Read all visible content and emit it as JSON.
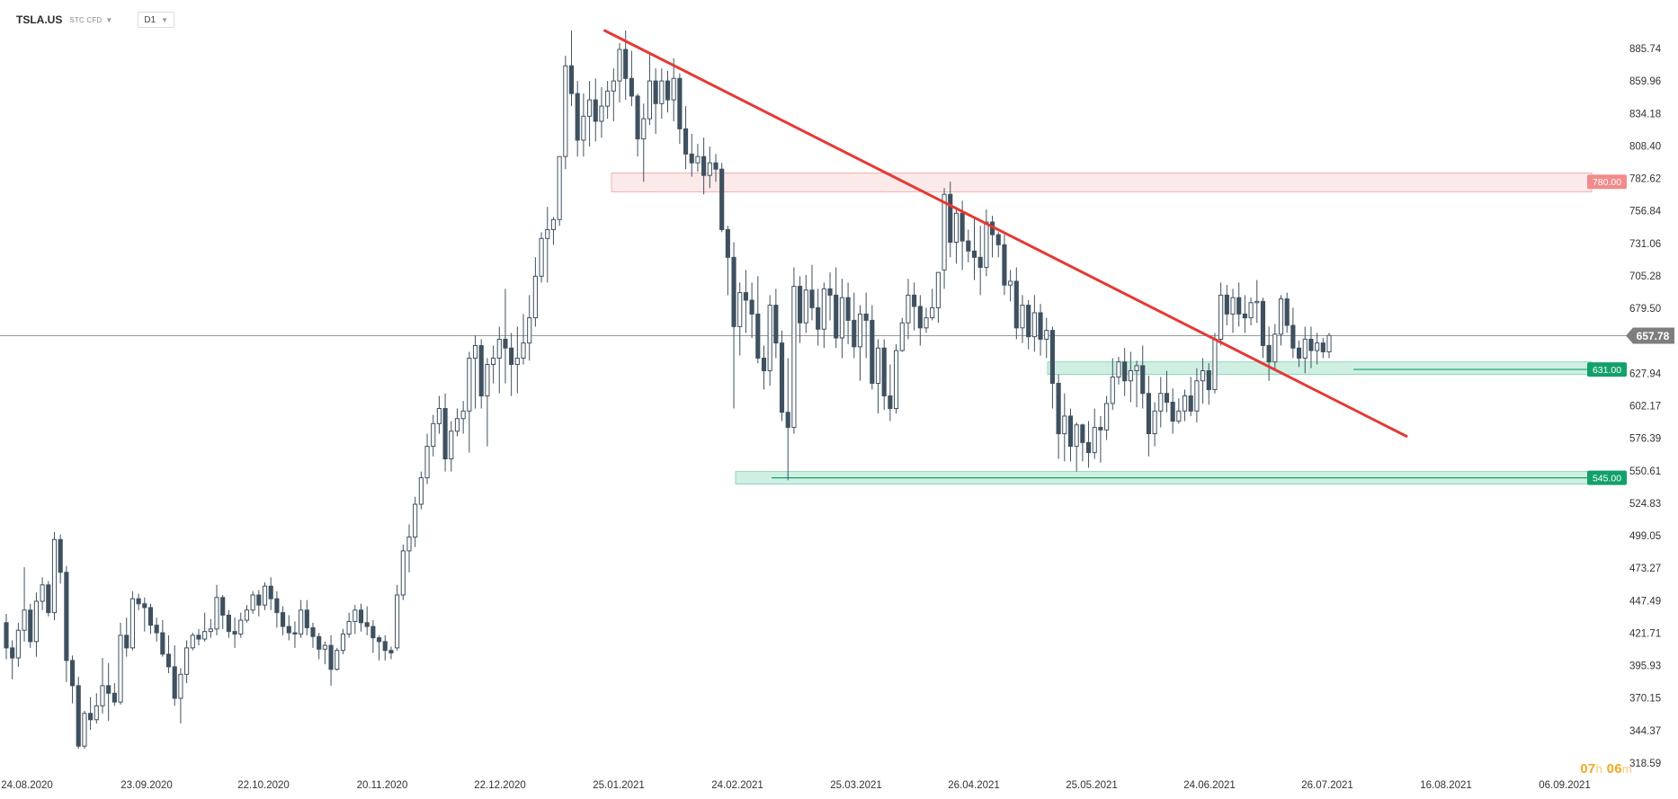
{
  "header": {
    "symbol": "TSLA.US",
    "market": "STC CFD",
    "timeframe": "D1"
  },
  "countdown": {
    "hours": "07",
    "h": "h",
    "minutes": "06",
    "m": "m"
  },
  "colors": {
    "bull_body": "#ffffff",
    "bear_body": "#3f5160",
    "candle_outline": "#3f5160",
    "trendline": "#e53935",
    "resistance_zone": "#f7c4c4",
    "support_zone": "#a8e2cc",
    "support_label": "#13a06b",
    "resistance_label": "#f28b8b",
    "current_price_label": "#7e7e7e"
  },
  "chart_data": {
    "type": "candlestick",
    "y_axis": {
      "ticks": [
        885.74,
        859.96,
        834.18,
        808.4,
        782.62,
        756.84,
        731.06,
        705.28,
        679.5,
        627.94,
        602.17,
        576.39,
        550.61,
        524.83,
        499.05,
        473.27,
        447.49,
        421.71,
        395.93,
        370.15,
        344.37,
        318.59
      ],
      "range": [
        318.59,
        885.74
      ]
    },
    "x_axis": {
      "ticks": [
        "24.08.2020",
        "23.09.2020",
        "22.10.2020",
        "20.11.2020",
        "22.12.2020",
        "25.01.2021",
        "24.02.2021",
        "25.03.2021",
        "26.04.2021",
        "25.05.2021",
        "24.06.2021",
        "26.07.2021",
        "16.08.2021",
        "06.09.2021"
      ]
    },
    "current_price": 657.78,
    "levels": [
      {
        "label": "780.00",
        "value": 780.0,
        "kind": "resistance",
        "zone": [
          772,
          787
        ]
      },
      {
        "label": "631.00",
        "value": 631.0,
        "kind": "support",
        "zone": [
          627,
          637
        ]
      },
      {
        "label": "545.00",
        "value": 545.0,
        "kind": "support",
        "zone": [
          540,
          550
        ]
      }
    ],
    "trendline": {
      "from": {
        "date": "21.01.2021",
        "price": 900
      },
      "to": {
        "date": "09.08.2021",
        "price": 578
      }
    },
    "ohlc_daily": [
      [
        430,
        437,
        401,
        410
      ],
      [
        410,
        416,
        385,
        402
      ],
      [
        402,
        430,
        395,
        424
      ],
      [
        424,
        474,
        415,
        440
      ],
      [
        440,
        445,
        410,
        415
      ],
      [
        415,
        454,
        403,
        447
      ],
      [
        447,
        466,
        440,
        460
      ],
      [
        460,
        463,
        435,
        438
      ],
      [
        438,
        502,
        432,
        496
      ],
      [
        496,
        500,
        461,
        470
      ],
      [
        470,
        475,
        383,
        400
      ],
      [
        400,
        404,
        366,
        380
      ],
      [
        380,
        387,
        330,
        332
      ],
      [
        332,
        360,
        330,
        358
      ],
      [
        358,
        371,
        345,
        353
      ],
      [
        353,
        374,
        350,
        364
      ],
      [
        364,
        402,
        358,
        380
      ],
      [
        380,
        398,
        352,
        374
      ],
      [
        374,
        382,
        364,
        367
      ],
      [
        367,
        430,
        365,
        420
      ],
      [
        420,
        434,
        403,
        410
      ],
      [
        410,
        455,
        408,
        449
      ],
      [
        449,
        453,
        440,
        445
      ],
      [
        445,
        450,
        423,
        442
      ],
      [
        442,
        445,
        421,
        428
      ],
      [
        428,
        434,
        415,
        422
      ],
      [
        422,
        432,
        403,
        405
      ],
      [
        405,
        420,
        390,
        395
      ],
      [
        395,
        412,
        364,
        370
      ],
      [
        370,
        394,
        350,
        389
      ],
      [
        389,
        416,
        382,
        410
      ],
      [
        410,
        422,
        408,
        420
      ],
      [
        420,
        425,
        412,
        417
      ],
      [
        417,
        438,
        415,
        423
      ],
      [
        423,
        433,
        418,
        425
      ],
      [
        425,
        460,
        420,
        450
      ],
      [
        450,
        452,
        425,
        436
      ],
      [
        436,
        440,
        418,
        423
      ],
      [
        423,
        434,
        410,
        421
      ],
      [
        421,
        438,
        418,
        432
      ],
      [
        432,
        444,
        430,
        440
      ],
      [
        440,
        455,
        437,
        452
      ],
      [
        452,
        456,
        435,
        444
      ],
      [
        444,
        462,
        440,
        459
      ],
      [
        459,
        466,
        440,
        449
      ],
      [
        449,
        455,
        426,
        438
      ],
      [
        438,
        443,
        420,
        427
      ],
      [
        427,
        436,
        416,
        422
      ],
      [
        422,
        431,
        410,
        421
      ],
      [
        421,
        448,
        418,
        440
      ],
      [
        440,
        448,
        420,
        426
      ],
      [
        426,
        430,
        410,
        419
      ],
      [
        419,
        422,
        401,
        409
      ],
      [
        409,
        415,
        397,
        412
      ],
      [
        412,
        420,
        380,
        393
      ],
      [
        393,
        410,
        392,
        408
      ],
      [
        408,
        425,
        405,
        421
      ],
      [
        421,
        438,
        418,
        431
      ],
      [
        431,
        444,
        421,
        440
      ],
      [
        440,
        445,
        423,
        430
      ],
      [
        430,
        443,
        420,
        427
      ],
      [
        427,
        432,
        406,
        418
      ],
      [
        418,
        420,
        400,
        415
      ],
      [
        415,
        420,
        400,
        408
      ],
      [
        408,
        411,
        401,
        406
      ],
      [
        410,
        460,
        408,
        452
      ],
      [
        452,
        492,
        448,
        487
      ],
      [
        487,
        508,
        470,
        498
      ],
      [
        498,
        530,
        490,
        524
      ],
      [
        524,
        550,
        520,
        545
      ],
      [
        545,
        580,
        540,
        570
      ],
      [
        570,
        595,
        562,
        588
      ],
      [
        588,
        610,
        580,
        600
      ],
      [
        600,
        612,
        550,
        560
      ],
      [
        560,
        590,
        550,
        582
      ],
      [
        582,
        600,
        578,
        592
      ],
      [
        592,
        606,
        580,
        598
      ],
      [
        598,
        645,
        565,
        640
      ],
      [
        640,
        658,
        600,
        650
      ],
      [
        650,
        655,
        600,
        610
      ],
      [
        610,
        640,
        570,
        635
      ],
      [
        635,
        650,
        620,
        640
      ],
      [
        640,
        665,
        612,
        655
      ],
      [
        655,
        695,
        620,
        648
      ],
      [
        648,
        660,
        610,
        635
      ],
      [
        635,
        665,
        612,
        640
      ],
      [
        640,
        675,
        635,
        652
      ],
      [
        652,
        690,
        638,
        672
      ],
      [
        672,
        720,
        665,
        705
      ],
      [
        705,
        740,
        700,
        735
      ],
      [
        735,
        760,
        700,
        742
      ],
      [
        742,
        752,
        730,
        750
      ],
      [
        750,
        800,
        745,
        800
      ],
      [
        800,
        880,
        790,
        872
      ],
      [
        872,
        900,
        840,
        850
      ],
      [
        850,
        860,
        800,
        813
      ],
      [
        813,
        850,
        800,
        832
      ],
      [
        832,
        860,
        808,
        845
      ],
      [
        845,
        862,
        812,
        828
      ],
      [
        828,
        855,
        815,
        840
      ],
      [
        840,
        860,
        830,
        852
      ],
      [
        852,
        870,
        828,
        860
      ],
      [
        860,
        890,
        843,
        885
      ],
      [
        885,
        900,
        845,
        862
      ],
      [
        862,
        884,
        840,
        848
      ],
      [
        848,
        850,
        800,
        814
      ],
      [
        814,
        842,
        780,
        830
      ],
      [
        830,
        882,
        825,
        860
      ],
      [
        860,
        870,
        818,
        842
      ],
      [
        842,
        870,
        830,
        860
      ],
      [
        860,
        868,
        835,
        845
      ],
      [
        845,
        878,
        828,
        862
      ],
      [
        862,
        866,
        810,
        822
      ],
      [
        822,
        840,
        790,
        802
      ],
      [
        802,
        818,
        784,
        795
      ],
      [
        795,
        810,
        788,
        800
      ],
      [
        800,
        815,
        770,
        785
      ],
      [
        785,
        808,
        775,
        795
      ],
      [
        795,
        802,
        780,
        790
      ],
      [
        790,
        795,
        740,
        742
      ],
      [
        742,
        745,
        690,
        720
      ],
      [
        720,
        732,
        600,
        665
      ],
      [
        665,
        700,
        642,
        692
      ],
      [
        692,
        710,
        660,
        686
      ],
      [
        686,
        700,
        656,
        675
      ],
      [
        675,
        705,
        636,
        640
      ],
      [
        640,
        650,
        615,
        630
      ],
      [
        630,
        690,
        618,
        682
      ],
      [
        682,
        695,
        640,
        652
      ],
      [
        652,
        662,
        590,
        597
      ],
      [
        597,
        640,
        543,
        585
      ],
      [
        585,
        712,
        580,
        697
      ],
      [
        697,
        705,
        652,
        668
      ],
      [
        668,
        706,
        660,
        694
      ],
      [
        694,
        714,
        670,
        680
      ],
      [
        680,
        695,
        650,
        663
      ],
      [
        663,
        700,
        648,
        695
      ],
      [
        695,
        708,
        670,
        690
      ],
      [
        690,
        712,
        648,
        656
      ],
      [
        656,
        703,
        640,
        688
      ],
      [
        688,
        700,
        651,
        670
      ],
      [
        670,
        692,
        640,
        649
      ],
      [
        649,
        682,
        622,
        675
      ],
      [
        675,
        692,
        640,
        670
      ],
      [
        670,
        682,
        615,
        620
      ],
      [
        620,
        655,
        596,
        648
      ],
      [
        648,
        655,
        599,
        610
      ],
      [
        610,
        635,
        590,
        600
      ],
      [
        600,
        651,
        596,
        646
      ],
      [
        646,
        672,
        645,
        668
      ],
      [
        668,
        703,
        655,
        690
      ],
      [
        690,
        700,
        662,
        681
      ],
      [
        681,
        690,
        650,
        664
      ],
      [
        664,
        680,
        660,
        672
      ],
      [
        672,
        695,
        670,
        680
      ],
      [
        680,
        705,
        668,
        708
      ],
      [
        710,
        775,
        695,
        770
      ],
      [
        770,
        780,
        720,
        732
      ],
      [
        732,
        760,
        715,
        755
      ],
      [
        755,
        765,
        710,
        733
      ],
      [
        733,
        742,
        716,
        725
      ],
      [
        725,
        752,
        702,
        720
      ],
      [
        720,
        745,
        690,
        712
      ],
      [
        712,
        758,
        705,
        748
      ],
      [
        748,
        753,
        720,
        738
      ],
      [
        738,
        740,
        720,
        730
      ],
      [
        730,
        738,
        690,
        698
      ],
      [
        698,
        710,
        685,
        701
      ],
      [
        701,
        712,
        655,
        664
      ],
      [
        664,
        690,
        652,
        682
      ],
      [
        682,
        686,
        647,
        657
      ],
      [
        657,
        690,
        645,
        676
      ],
      [
        676,
        683,
        642,
        655
      ],
      [
        655,
        672,
        640,
        662
      ],
      [
        662,
        665,
        600,
        620
      ],
      [
        620,
        627,
        560,
        580
      ],
      [
        580,
        612,
        558,
        594
      ],
      [
        594,
        600,
        558,
        570
      ],
      [
        570,
        589,
        550,
        587
      ],
      [
        587,
        588,
        558,
        573
      ],
      [
        573,
        590,
        553,
        565
      ],
      [
        565,
        600,
        560,
        585
      ],
      [
        585,
        594,
        557,
        583
      ],
      [
        583,
        610,
        575,
        604
      ],
      [
        604,
        640,
        599,
        625
      ],
      [
        625,
        641,
        619,
        637
      ],
      [
        637,
        648,
        610,
        622
      ],
      [
        622,
        645,
        605,
        630
      ],
      [
        630,
        638,
        601,
        634
      ],
      [
        634,
        650,
        600,
        612
      ],
      [
        612,
        626,
        562,
        580
      ],
      [
        580,
        605,
        570,
        598
      ],
      [
        598,
        625,
        585,
        612
      ],
      [
        612,
        630,
        597,
        605
      ],
      [
        605,
        616,
        580,
        590
      ],
      [
        590,
        608,
        588,
        598
      ],
      [
        598,
        615,
        590,
        610
      ],
      [
        610,
        625,
        594,
        598
      ],
      [
        598,
        632,
        589,
        622
      ],
      [
        622,
        640,
        604,
        630
      ],
      [
        630,
        636,
        603,
        615
      ],
      [
        615,
        660,
        612,
        655
      ],
      [
        655,
        700,
        650,
        690
      ],
      [
        690,
        698,
        666,
        675
      ],
      [
        675,
        695,
        660,
        688
      ],
      [
        688,
        700,
        665,
        675
      ],
      [
        675,
        690,
        660,
        672
      ],
      [
        672,
        688,
        666,
        684
      ],
      [
        684,
        702,
        668,
        685
      ],
      [
        685,
        688,
        640,
        650
      ],
      [
        650,
        665,
        622,
        637
      ],
      [
        637,
        667,
        630,
        659
      ],
      [
        659,
        690,
        650,
        687
      ],
      [
        687,
        692,
        660,
        666
      ],
      [
        666,
        680,
        640,
        648
      ],
      [
        648,
        654,
        633,
        640
      ],
      [
        640,
        665,
        628,
        655
      ],
      [
        655,
        665,
        632,
        646
      ],
      [
        646,
        660,
        635,
        652
      ],
      [
        652,
        656,
        640,
        645
      ],
      [
        645,
        660,
        640,
        658
      ]
    ]
  }
}
